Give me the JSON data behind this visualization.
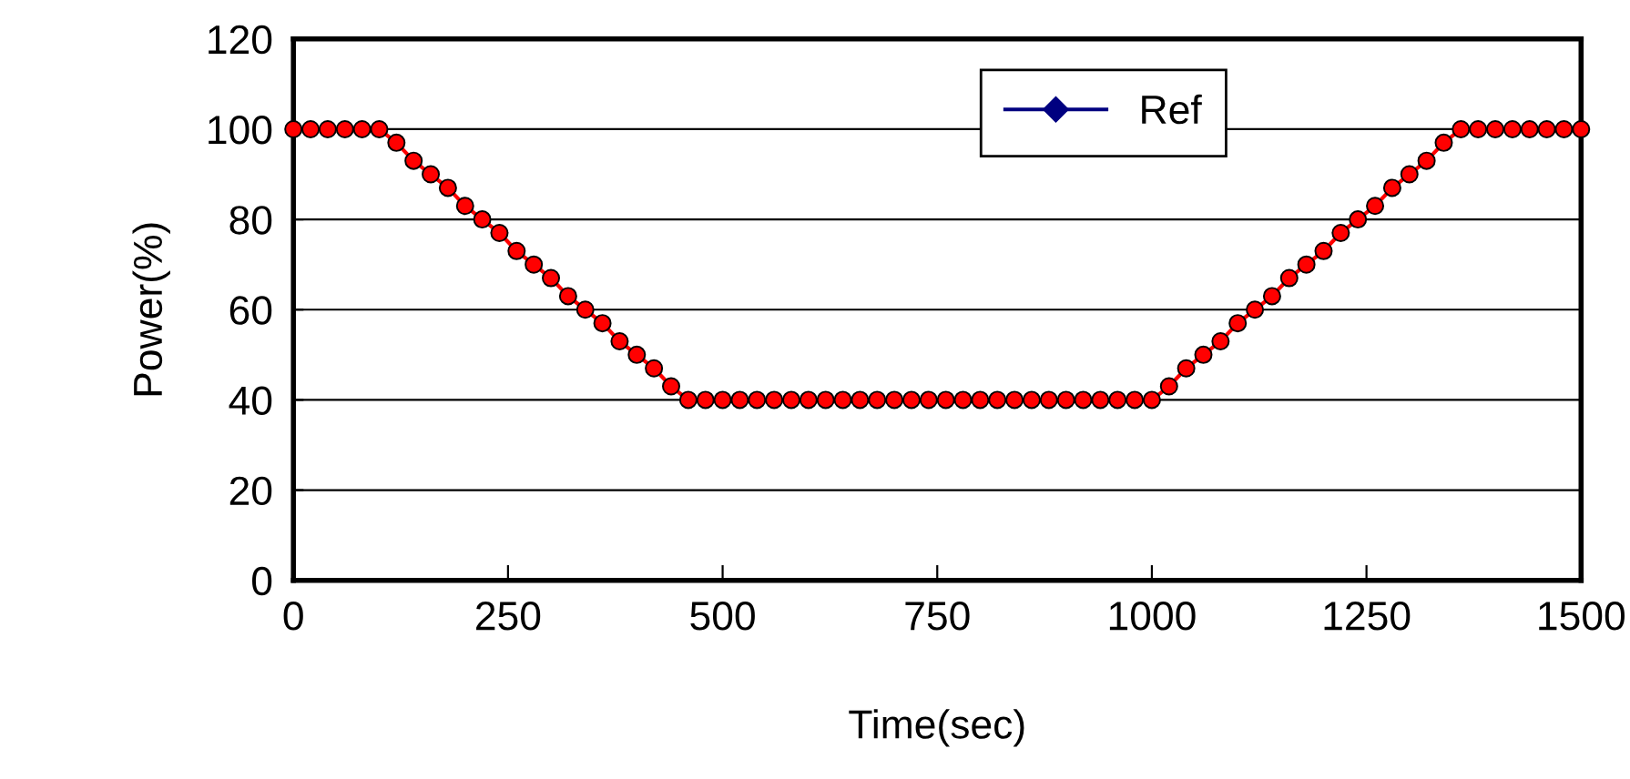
{
  "chart_data": {
    "type": "line",
    "xlabel": "Time(sec)",
    "ylabel": "Power(%)",
    "x": [
      0,
      20,
      40,
      60,
      80,
      100,
      120,
      140,
      160,
      180,
      200,
      220,
      240,
      260,
      280,
      300,
      320,
      340,
      360,
      380,
      400,
      420,
      440,
      460,
      480,
      500,
      520,
      540,
      560,
      580,
      600,
      620,
      640,
      660,
      680,
      700,
      720,
      740,
      760,
      780,
      800,
      820,
      840,
      860,
      880,
      900,
      920,
      940,
      960,
      980,
      1000,
      1020,
      1040,
      1060,
      1080,
      1100,
      1120,
      1140,
      1160,
      1180,
      1200,
      1220,
      1240,
      1260,
      1280,
      1300,
      1320,
      1340,
      1360,
      1380,
      1400,
      1420,
      1440,
      1460,
      1480,
      1500
    ],
    "series": [
      {
        "name": "Ref",
        "color": "#000080",
        "marker": "diamond",
        "values": [
          null,
          null,
          null,
          null,
          null,
          null,
          null,
          null,
          null,
          null,
          null,
          null,
          null,
          null,
          null,
          null,
          null,
          null,
          null,
          null,
          null,
          null,
          null,
          null,
          null,
          null,
          null,
          null,
          null,
          null,
          null,
          null,
          null,
          null,
          null,
          null,
          null,
          null,
          null,
          null,
          null,
          null,
          null,
          null,
          null,
          null,
          null,
          null,
          null,
          null,
          null,
          null,
          null,
          null,
          null,
          null,
          null,
          null,
          null,
          null,
          null,
          null,
          null,
          null,
          null,
          null,
          null,
          null,
          null,
          null,
          null,
          null,
          null,
          null,
          null,
          null
        ]
      },
      {
        "color": "#ff0000",
        "marker": "circle",
        "values": [
          100,
          100,
          100,
          100,
          100,
          100,
          97,
          93,
          90,
          87,
          83,
          80,
          77,
          73,
          70,
          67,
          63,
          60,
          57,
          53,
          50,
          47,
          43,
          40,
          40,
          40,
          40,
          40,
          40,
          40,
          40,
          40,
          40,
          40,
          40,
          40,
          40,
          40,
          40,
          40,
          40,
          40,
          40,
          40,
          40,
          40,
          40,
          40,
          40,
          40,
          40,
          43,
          47,
          50,
          53,
          57,
          60,
          63,
          67,
          70,
          73,
          77,
          80,
          83,
          87,
          90,
          93,
          97,
          100,
          100,
          100,
          100,
          100,
          100,
          100,
          100
        ]
      }
    ],
    "xlim": [
      0,
      1500
    ],
    "xticks": [
      0,
      250,
      500,
      750,
      1000,
      1250,
      1500
    ],
    "ylim": [
      0,
      120
    ],
    "yticks": [
      0,
      20,
      40,
      60,
      80,
      100,
      120
    ],
    "grid": "y",
    "legend": "top right",
    "line_style": "solid"
  }
}
